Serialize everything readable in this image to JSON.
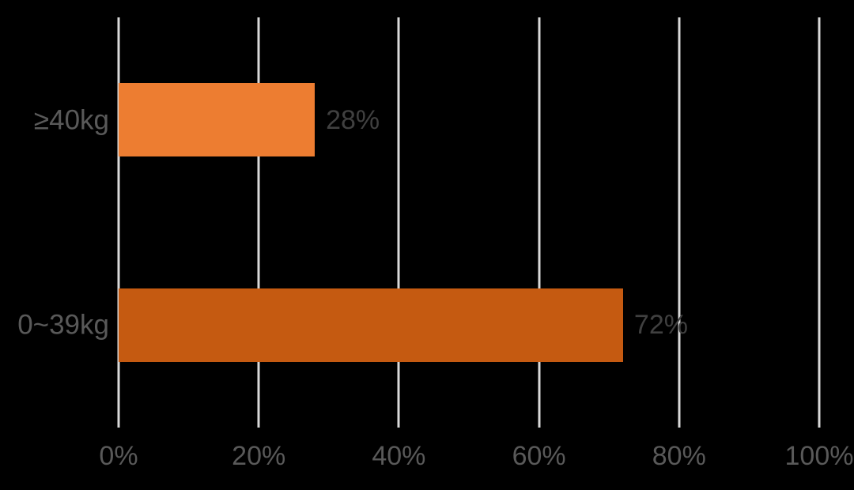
{
  "page": {
    "background": "#000000"
  },
  "chart_data": {
    "type": "bar",
    "orientation": "horizontal",
    "title": "",
    "categories": [
      "≥40kg",
      "0~39kg"
    ],
    "values": [
      28,
      72
    ],
    "value_labels": [
      "28%",
      "72%"
    ],
    "bar_colors": [
      "#ED7D31",
      "#C55A11"
    ],
    "x_axis": {
      "tick_values": [
        0,
        20,
        40,
        60,
        80,
        100
      ],
      "tick_labels": [
        "0%",
        "20%",
        "40%",
        "60%",
        "80%",
        "100%"
      ],
      "range": [
        0,
        100
      ]
    },
    "grid": {
      "vertical": true,
      "horizontal": false,
      "color": "#D9D9D9"
    },
    "legend": "none",
    "text_colors": {
      "category": "#595959",
      "axis": "#595959",
      "value": "#404040"
    }
  }
}
